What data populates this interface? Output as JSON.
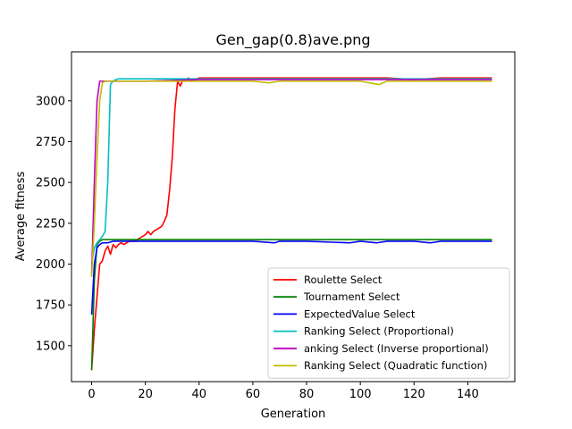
{
  "chart_data": {
    "type": "line",
    "title": "Gen_gap(0.8)ave.png",
    "xlabel": "Generation",
    "ylabel": "Average fitness",
    "xlim": [
      -7.5,
      157.5
    ],
    "ylim": [
      1280,
      3300
    ],
    "xticks": [
      0,
      20,
      40,
      60,
      80,
      100,
      120,
      140
    ],
    "yticks": [
      1500,
      1750,
      2000,
      2250,
      2500,
      2750,
      3000
    ],
    "legend_position": "lower-right",
    "grid": false,
    "series": [
      {
        "name": "Roulette Select",
        "color": "#ff0000",
        "points": [
          [
            0,
            1350
          ],
          [
            1,
            1600
          ],
          [
            2,
            1800
          ],
          [
            3,
            2000
          ],
          [
            4,
            2020
          ],
          [
            5,
            2080
          ],
          [
            6,
            2110
          ],
          [
            7,
            2060
          ],
          [
            8,
            2120
          ],
          [
            9,
            2100
          ],
          [
            10,
            2120
          ],
          [
            11,
            2130
          ],
          [
            12,
            2120
          ],
          [
            14,
            2140
          ],
          [
            16,
            2140
          ],
          [
            18,
            2160
          ],
          [
            20,
            2180
          ],
          [
            21,
            2200
          ],
          [
            22,
            2180
          ],
          [
            23,
            2200
          ],
          [
            24,
            2210
          ],
          [
            25,
            2220
          ],
          [
            26,
            2230
          ],
          [
            27,
            2260
          ],
          [
            28,
            2300
          ],
          [
            29,
            2450
          ],
          [
            30,
            2650
          ],
          [
            31,
            2950
          ],
          [
            32,
            3120
          ],
          [
            33,
            3090
          ],
          [
            34,
            3130
          ],
          [
            35,
            3120
          ],
          [
            36,
            3140
          ],
          [
            37,
            3120
          ],
          [
            40,
            3140
          ],
          [
            50,
            3140
          ],
          [
            60,
            3140
          ],
          [
            70,
            3140
          ],
          [
            80,
            3140
          ],
          [
            90,
            3140
          ],
          [
            100,
            3140
          ],
          [
            110,
            3140
          ],
          [
            120,
            3130
          ],
          [
            130,
            3140
          ],
          [
            140,
            3140
          ],
          [
            149,
            3140
          ]
        ]
      },
      {
        "name": "Tournament Select",
        "color": "#008000",
        "points": [
          [
            0,
            1350
          ],
          [
            1,
            1900
          ],
          [
            2,
            2120
          ],
          [
            3,
            2140
          ],
          [
            4,
            2150
          ],
          [
            6,
            2150
          ],
          [
            10,
            2150
          ],
          [
            20,
            2150
          ],
          [
            40,
            2150
          ],
          [
            60,
            2150
          ],
          [
            80,
            2150
          ],
          [
            100,
            2150
          ],
          [
            120,
            2150
          ],
          [
            149,
            2150
          ]
        ]
      },
      {
        "name": "ExpectedValue Select",
        "color": "#0000ff",
        "points": [
          [
            0,
            1690
          ],
          [
            1,
            2000
          ],
          [
            2,
            2100
          ],
          [
            3,
            2120
          ],
          [
            4,
            2130
          ],
          [
            6,
            2130
          ],
          [
            8,
            2140
          ],
          [
            10,
            2140
          ],
          [
            15,
            2140
          ],
          [
            20,
            2140
          ],
          [
            40,
            2140
          ],
          [
            60,
            2140
          ],
          [
            68,
            2130
          ],
          [
            70,
            2140
          ],
          [
            80,
            2140
          ],
          [
            96,
            2130
          ],
          [
            100,
            2140
          ],
          [
            106,
            2130
          ],
          [
            110,
            2140
          ],
          [
            120,
            2140
          ],
          [
            126,
            2130
          ],
          [
            130,
            2140
          ],
          [
            149,
            2140
          ]
        ]
      },
      {
        "name": "Ranking Select (Proportional)",
        "color": "#00bfbf",
        "points": [
          [
            0,
            2000
          ],
          [
            1,
            2100
          ],
          [
            2,
            2130
          ],
          [
            3,
            2150
          ],
          [
            4,
            2170
          ],
          [
            5,
            2200
          ],
          [
            6,
            2500
          ],
          [
            7,
            3100
          ],
          [
            8,
            3120
          ],
          [
            9,
            3130
          ],
          [
            10,
            3135
          ],
          [
            15,
            3135
          ],
          [
            20,
            3135
          ],
          [
            30,
            3135
          ],
          [
            40,
            3135
          ],
          [
            60,
            3135
          ],
          [
            80,
            3135
          ],
          [
            100,
            3135
          ],
          [
            110,
            3135
          ],
          [
            130,
            3135
          ],
          [
            149,
            3135
          ]
        ]
      },
      {
        "name": "anking Select (Inverse proportional)",
        "color": "#bf00bf",
        "points": [
          [
            0,
            1930
          ],
          [
            1,
            2500
          ],
          [
            2,
            3000
          ],
          [
            3,
            3120
          ],
          [
            4,
            3120
          ],
          [
            10,
            3120
          ],
          [
            20,
            3120
          ],
          [
            40,
            3130
          ],
          [
            60,
            3130
          ],
          [
            80,
            3130
          ],
          [
            100,
            3130
          ],
          [
            120,
            3130
          ],
          [
            149,
            3130
          ]
        ]
      },
      {
        "name": "Ranking Select (Quadratic function)",
        "color": "#bfbf00",
        "points": [
          [
            0,
            1920
          ],
          [
            1,
            2250
          ],
          [
            2,
            2650
          ],
          [
            3,
            3000
          ],
          [
            4,
            3110
          ],
          [
            5,
            3120
          ],
          [
            10,
            3120
          ],
          [
            20,
            3120
          ],
          [
            40,
            3120
          ],
          [
            60,
            3120
          ],
          [
            66,
            3110
          ],
          [
            70,
            3120
          ],
          [
            80,
            3120
          ],
          [
            100,
            3120
          ],
          [
            107,
            3100
          ],
          [
            110,
            3120
          ],
          [
            120,
            3120
          ],
          [
            130,
            3120
          ],
          [
            149,
            3120
          ]
        ]
      }
    ]
  }
}
